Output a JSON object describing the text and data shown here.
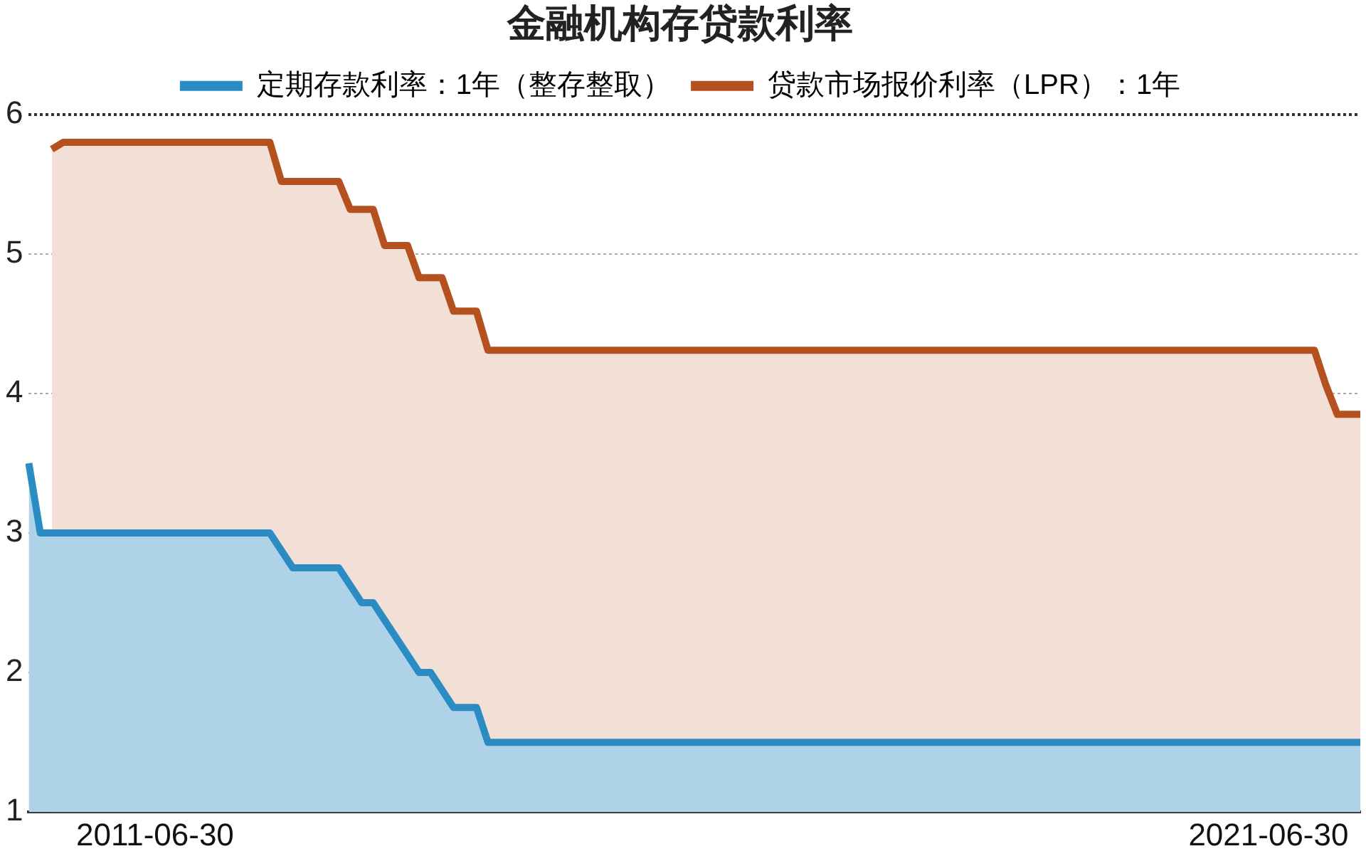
{
  "chart_data": {
    "type": "area",
    "title": "金融机构存贷款利率",
    "categories": [
      null,
      null,
      null,
      null,
      null,
      null,
      null,
      null,
      null,
      null,
      null,
      "2011-06-30",
      null,
      null,
      null,
      null,
      null,
      null,
      null,
      null,
      null,
      null,
      null,
      null,
      null,
      null,
      null,
      null,
      null,
      null,
      null,
      null,
      null,
      null,
      null,
      null,
      null,
      null,
      null,
      null,
      null,
      null,
      null,
      null,
      null,
      null,
      null,
      null,
      null,
      null,
      null,
      null,
      null,
      null,
      null,
      null,
      null,
      null,
      null,
      null,
      null,
      null,
      null,
      null,
      null,
      null,
      null,
      null,
      null,
      null,
      null,
      null,
      null,
      null,
      null,
      null,
      null,
      null,
      null,
      null,
      null,
      null,
      null,
      null,
      null,
      null,
      null,
      null,
      null,
      null,
      null,
      null,
      null,
      null,
      null,
      null,
      null,
      null,
      null,
      null,
      null,
      null,
      null,
      null,
      null,
      null,
      null,
      null,
      "2021-06-30",
      null,
      null,
      null,
      null,
      null,
      null,
      null,
      null
    ],
    "series": [
      {
        "name": "定期存款利率：1年（整存整取）",
        "color": "#2b8bc3",
        "values": [
          3.5,
          3.0,
          3.0,
          3.0,
          3.0,
          3.0,
          3.0,
          3.0,
          3.0,
          3.0,
          3.0,
          3.0,
          3.0,
          3.0,
          3.0,
          3.0,
          3.0,
          3.0,
          3.0,
          3.0,
          3.0,
          3.0,
          null,
          2.75,
          2.75,
          2.75,
          2.75,
          2.75,
          null,
          2.5,
          2.5,
          null,
          null,
          null,
          2.0,
          2.0,
          null,
          1.75,
          1.75,
          1.75,
          1.5,
          1.5,
          1.5,
          1.5,
          1.5,
          1.5,
          1.5,
          1.5,
          1.5,
          1.5,
          1.5,
          1.5,
          1.5,
          1.5,
          1.5,
          1.5,
          1.5,
          1.5,
          1.5,
          1.5,
          1.5,
          1.5,
          1.5,
          1.5,
          1.5,
          1.5,
          1.5,
          1.5,
          1.5,
          1.5,
          1.5,
          1.5,
          1.5,
          1.5,
          1.5,
          1.5,
          1.5,
          1.5,
          1.5,
          1.5,
          1.5,
          1.5,
          1.5,
          1.5,
          1.5,
          1.5,
          1.5,
          1.5,
          1.5,
          1.5,
          1.5,
          1.5,
          1.5,
          1.5,
          1.5,
          1.5,
          1.5,
          1.5,
          1.5,
          1.5,
          1.5,
          1.5,
          1.5,
          1.5,
          1.5,
          1.5,
          1.5,
          1.5,
          1.5,
          1.5,
          1.5,
          1.5,
          1.5,
          1.5,
          1.5,
          1.5,
          1.5
        ]
      },
      {
        "name": "贷款市场报价利率（LPR）：1年",
        "color": "#b5501f",
        "values": [
          null,
          null,
          5.75,
          5.8,
          5.8,
          5.8,
          5.8,
          5.8,
          5.8,
          5.8,
          5.8,
          5.8,
          5.8,
          5.8,
          5.8,
          5.8,
          5.8,
          5.8,
          5.8,
          5.8,
          5.8,
          5.8,
          5.52,
          5.52,
          5.52,
          5.52,
          5.52,
          5.52,
          5.32,
          5.32,
          5.32,
          5.06,
          5.06,
          5.06,
          4.83,
          4.83,
          4.83,
          4.59,
          4.59,
          4.59,
          4.31,
          4.31,
          4.31,
          4.31,
          4.31,
          4.31,
          4.31,
          4.31,
          4.31,
          4.31,
          4.31,
          4.31,
          4.31,
          4.31,
          4.31,
          4.31,
          4.31,
          4.31,
          4.31,
          4.31,
          4.31,
          4.31,
          4.31,
          4.31,
          4.31,
          4.31,
          4.31,
          4.31,
          4.31,
          4.31,
          4.31,
          4.31,
          4.31,
          4.31,
          4.31,
          4.31,
          4.31,
          4.31,
          4.31,
          4.31,
          4.31,
          4.31,
          4.31,
          4.31,
          4.31,
          4.31,
          4.31,
          4.31,
          4.31,
          4.31,
          4.31,
          4.31,
          4.31,
          4.31,
          4.31,
          4.31,
          4.31,
          4.31,
          4.31,
          4.31,
          4.31,
          4.31,
          4.31,
          4.31,
          4.31,
          4.31,
          4.31,
          4.31,
          4.31,
          4.31,
          4.31,
          4.31,
          4.31,
          4.06,
          3.85,
          3.85,
          3.85
        ]
      }
    ],
    "ylim": [
      1,
      6
    ],
    "yticks": [
      1,
      2,
      3,
      4,
      5,
      6
    ],
    "grid": "y",
    "legend": "top"
  }
}
